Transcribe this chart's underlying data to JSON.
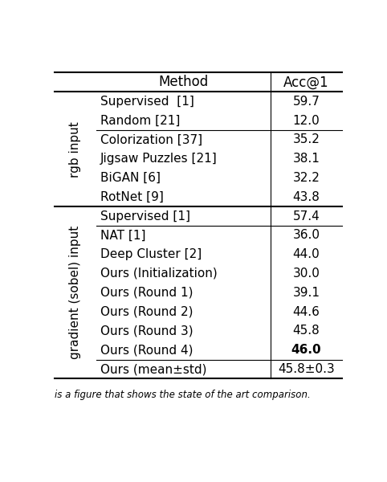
{
  "col_headers": [
    "Method",
    "Acc@1"
  ],
  "sections": [
    {
      "row_label": "rgb input",
      "subsections": [
        {
          "rows": [
            {
              "method": "Supervised  [1]",
              "acc": "59.7",
              "bold": false
            },
            {
              "method": "Random [21]",
              "acc": "12.0",
              "bold": false
            }
          ]
        },
        {
          "rows": [
            {
              "method": "Colorization [37]",
              "acc": "35.2",
              "bold": false
            },
            {
              "method": "Jigsaw Puzzles [21]",
              "acc": "38.1",
              "bold": false
            },
            {
              "method": "BiGAN [6]",
              "acc": "32.2",
              "bold": false
            },
            {
              "method": "RotNet [9]",
              "acc": "43.8",
              "bold": false
            }
          ]
        }
      ]
    },
    {
      "row_label": "gradient (sobel) input",
      "subsections": [
        {
          "rows": [
            {
              "method": "Supervised [1]",
              "acc": "57.4",
              "bold": false
            }
          ]
        },
        {
          "rows": [
            {
              "method": "NAT [1]",
              "acc": "36.0",
              "bold": false
            },
            {
              "method": "Deep Cluster [2]",
              "acc": "44.0",
              "bold": false
            },
            {
              "method": "Ours (Initialization)",
              "acc": "30.0",
              "bold": false
            },
            {
              "method": "Ours (Round 1)",
              "acc": "39.1",
              "bold": false
            },
            {
              "method": "Ours (Round 2)",
              "acc": "44.6",
              "bold": false
            },
            {
              "method": "Ours (Round 3)",
              "acc": "45.8",
              "bold": false
            },
            {
              "method": "Ours (Round 4)",
              "acc": "46.0",
              "bold": true
            }
          ]
        },
        {
          "rows": [
            {
              "method": "Ours (mean±std)",
              "acc": "45.8±0.3",
              "bold": false
            }
          ]
        }
      ]
    }
  ],
  "bg_color": "#ffffff",
  "text_color": "#000000",
  "font_size": 11,
  "header_font_size": 12,
  "caption": "is a figure that shows the state of the art comparison."
}
